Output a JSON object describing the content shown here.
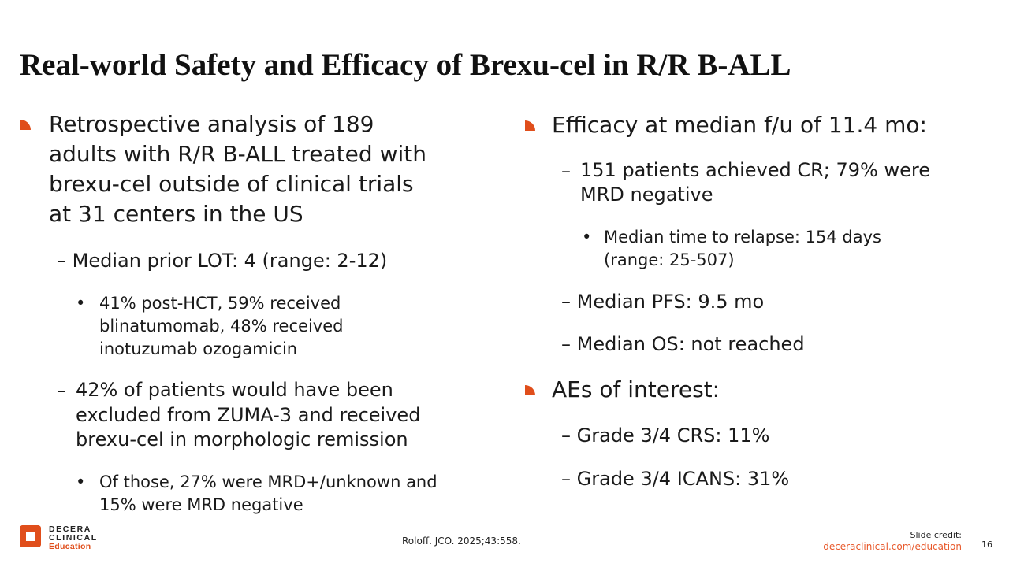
{
  "title": "Real-world Safety and Efficacy of Brexu-cel in R/R B-ALL",
  "left": {
    "b1": [
      "Retrospective analysis of 189",
      "adults with R/R B-ALL treated with",
      "brexu-cel outside of clinical trials",
      "at 31 centers in the US"
    ],
    "b1a": "Median prior LOT: 4 (range: 2-12)",
    "b1a_i": [
      "41% post-HCT, 59% received",
      "blinatumomab, 48% received",
      "inotuzumab ozogamicin"
    ],
    "b1b": [
      "42% of patients would have been",
      "excluded from ZUMA-3 and received",
      "brexu-cel in morphologic remission"
    ],
    "b1b_i": [
      "Of those, 27% were MRD+/unknown and",
      "15% were MRD negative"
    ]
  },
  "right": {
    "b1": "Efficacy at median f/u of 11.4 mo:",
    "b1a": [
      "151 patients achieved CR; 79% were",
      "MRD negative"
    ],
    "b1a_i": [
      "Median time to relapse: 154 days",
      "(range: 25-507)"
    ],
    "b1b": "Median PFS: 9.5 mo",
    "b1c": "Median OS: not reached",
    "b2": "AEs of interest:",
    "b2a": "Grade 3/4 CRS: 11%",
    "b2b": "Grade 3/4 ICANS: 31%"
  },
  "footer": {
    "logo": [
      "DECERA",
      "CLINICAL",
      "Education"
    ],
    "citation": "Roloff. JCO. 2025;43:558.",
    "credit_label": "Slide credit:",
    "credit_url": "deceraclinical.com/education",
    "page": "16"
  },
  "colors": {
    "accent": "#E04E1B"
  }
}
